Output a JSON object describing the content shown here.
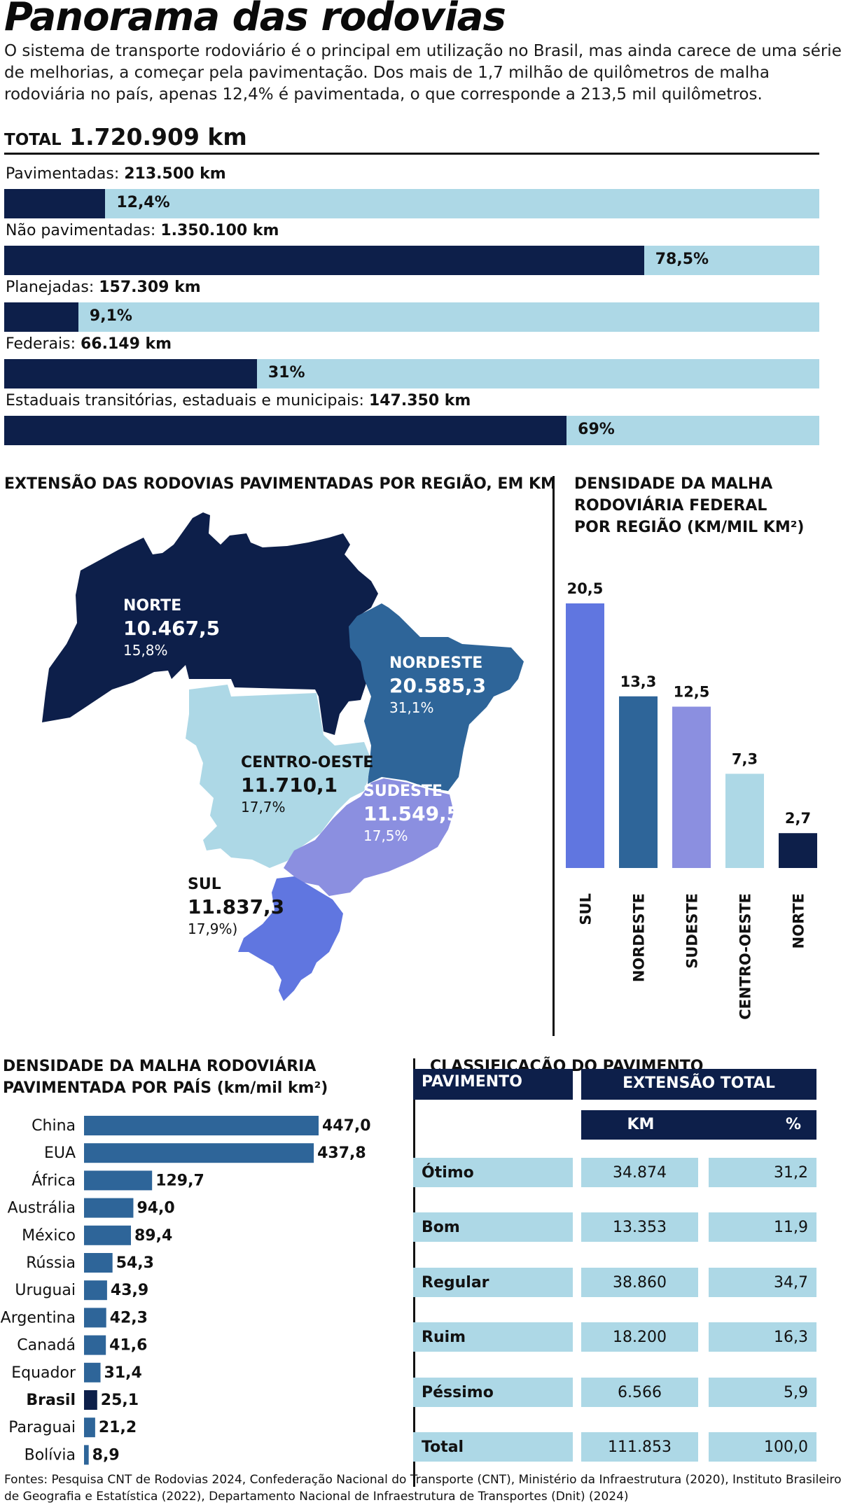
{
  "title": "Panorama das rodovias",
  "intro": "O sistema de transporte rodoviário é o principal em utilização no Brasil, mas ainda carece de uma série de melhorias, a começar pela pavimentação. Dos mais de 1,7 milhão de quilômetros de malha rodoviária no país, apenas 12,4% é pavimentada, o que corresponde a 213,5 mil quilômetros.",
  "total": {
    "label": "TOTAL",
    "value": "1.720.909 km"
  },
  "colors": {
    "navy": "#0d1f4a",
    "light": "#add8e6",
    "mid": "#2e6599",
    "sul": "#6076e0",
    "sudeste": "#8b8fe0"
  },
  "chart_data": [
    {
      "type": "bar",
      "orientation": "horizontal-stacked",
      "items": [
        {
          "label": "Pavimentadas:",
          "value": "213.500 km",
          "share": 12.4,
          "pct": "12,4%"
        },
        {
          "label": "Não pavimentadas:",
          "value": "1.350.100 km",
          "share": 78.5,
          "pct": "78,5%"
        },
        {
          "label": "Planejadas:",
          "value": "157.309 km",
          "share": 9.1,
          "pct": "9,1%"
        },
        {
          "label": "Federais:",
          "value": "66.149 km",
          "share": 31,
          "pct": "31%"
        },
        {
          "label": "Estaduais transitórias, estaduais e municipais:",
          "value": "147.350 km",
          "share": 69,
          "pct": "69%"
        }
      ]
    },
    {
      "type": "map",
      "title": "EXTENSÃO DAS RODOVIAS PAVIMENTADAS POR REGIÃO, EM KM",
      "regions": [
        {
          "name": "NORTE",
          "km": "10.467,5",
          "pct": "15,8%",
          "value": 10467.5,
          "color": "#0d1f4a"
        },
        {
          "name": "NORDESTE",
          "km": "20.585,3",
          "pct": "31,1%",
          "value": 20585.3,
          "color": "#2e6599"
        },
        {
          "name": "CENTRO-OESTE",
          "km": "11.710,1",
          "pct": "17,7%",
          "value": 11710.1,
          "color": "#add8e6"
        },
        {
          "name": "SUDESTE",
          "km": "11.549,5",
          "pct": "17,5%",
          "value": 11549.5,
          "color": "#8b8fe0"
        },
        {
          "name": "SUL",
          "km": "11.837,3",
          "pct": "17,9%)",
          "value": 11837.3,
          "color": "#6076e0"
        }
      ]
    },
    {
      "type": "bar",
      "title_lines": [
        "DENSIDADE DA MALHA",
        "RODOVIÁRIA FEDERAL",
        "POR REGIÃO (KM/MIL KM²)"
      ],
      "categories": [
        "SUL",
        "NORDESTE",
        "SUDESTE",
        "CENTRO-OESTE",
        "NORTE"
      ],
      "values": [
        20.5,
        13.3,
        12.5,
        7.3,
        2.7
      ],
      "labels": [
        "20,5",
        "13,3",
        "12,5",
        "7,3",
        "2,7"
      ],
      "colors": [
        "#6076e0",
        "#2e6599",
        "#8b8fe0",
        "#add8e6",
        "#0d1f4a"
      ],
      "ylim": [
        0,
        20.5
      ]
    },
    {
      "type": "bar",
      "orientation": "horizontal",
      "title_lines": [
        "DENSIDADE DA MALHA RODOVIÁRIA",
        "PAVIMENTADA POR PAÍS (km/mil km²)"
      ],
      "categories": [
        "China",
        "EUA",
        "África",
        "Austrália",
        "México",
        "Rússia",
        "Uruguai",
        "Argentina",
        "Canadá",
        "Equador",
        "Brasil",
        "Paraguai",
        "Bolívia"
      ],
      "values": [
        447.0,
        437.8,
        129.7,
        94.0,
        89.4,
        54.3,
        43.9,
        42.3,
        41.6,
        31.4,
        25.1,
        21.2,
        8.9
      ],
      "labels": [
        "447,0",
        "437,8",
        "129,7",
        "94,0",
        "89,4",
        "54,3",
        "43,9",
        "42,3",
        "41,6",
        "31,4",
        "25,1",
        "21,2",
        "8,9"
      ],
      "highlight": "Brasil"
    },
    {
      "type": "table",
      "title": "CLASSIFICAÇÃO DO PAVIMENTO",
      "headers": {
        "pav": "PAVIMENTO",
        "ext": "EXTENSÃO TOTAL",
        "km": "KM",
        "pct": "%"
      },
      "rows": [
        {
          "name": "Ótimo",
          "km": "34.874",
          "pct": "31,2"
        },
        {
          "name": "Bom",
          "km": "13.353",
          "pct": "11,9"
        },
        {
          "name": "Regular",
          "km": "38.860",
          "pct": "34,7"
        },
        {
          "name": "Ruim",
          "km": "18.200",
          "pct": "16,3"
        },
        {
          "name": "Péssimo",
          "km": "6.566",
          "pct": "5,9"
        },
        {
          "name": "Total",
          "km": "111.853",
          "pct": "100,0"
        }
      ]
    }
  ],
  "footer": "Fontes: Pesquisa CNT de Rodovias 2024, Confederação Nacional do Transporte (CNT), Ministério da Infraestrutura (2020), Instituto Brasileiro de Geografia e Estatística (2022), Departamento Nacional de Infraestrutura de Transportes (Dnit) (2024)"
}
